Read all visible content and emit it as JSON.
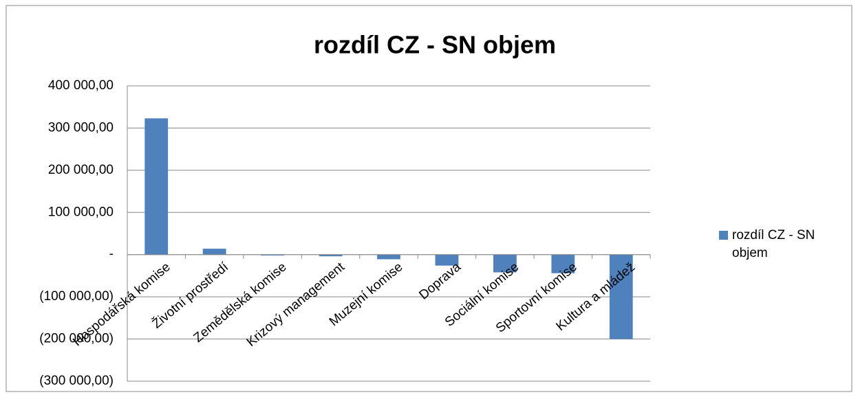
{
  "chart_data": {
    "type": "bar",
    "title": "rozdíl CZ - SN objem",
    "categories": [
      "Hospodářská komise",
      "Životní prostředí",
      "Zemědělská komise",
      "Krizový management",
      "Muzejní komise",
      "Doprava",
      "Sociální komise",
      "Sportovní komise",
      "Kultura a mládež"
    ],
    "series": [
      {
        "name": "rozdíl CZ - SN objem",
        "color": "#4f81bd",
        "values": [
          323000,
          14000,
          -2000,
          -4000,
          -11000,
          -26000,
          -42000,
          -44000,
          -200000
        ]
      }
    ],
    "ylim": [
      -300000,
      400000
    ],
    "yticks": [
      {
        "value": -300000,
        "label": "(300 000,00)"
      },
      {
        "value": -200000,
        "label": "(200 000,00)"
      },
      {
        "value": -100000,
        "label": "(100 000,00)"
      },
      {
        "value": 0,
        "label": "-"
      },
      {
        "value": 100000,
        "label": "100 000,00"
      },
      {
        "value": 200000,
        "label": "200 000,00"
      },
      {
        "value": 300000,
        "label": "300 000,00"
      },
      {
        "value": 400000,
        "label": "400 000,00"
      }
    ],
    "grid": true,
    "legend": "right"
  }
}
